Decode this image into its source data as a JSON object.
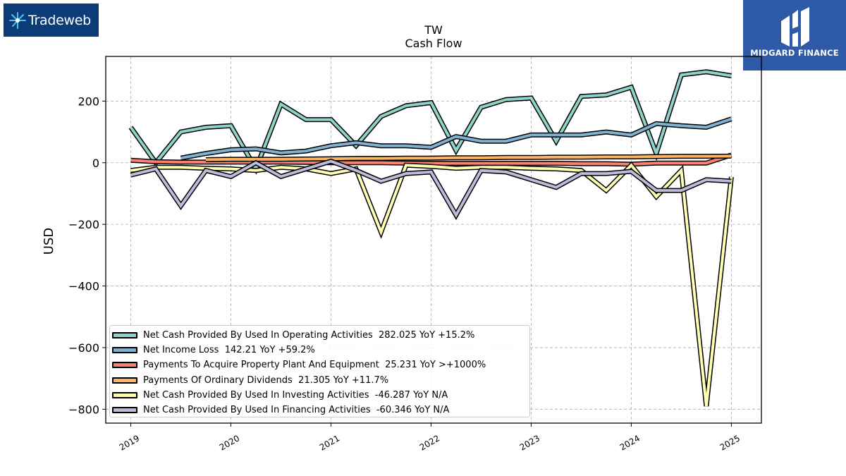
{
  "logos": {
    "left_text": "Tradeweb",
    "right_text": "MIDGARD FINANCE"
  },
  "chart_data": {
    "type": "line",
    "title": "TW",
    "subtitle": "Cash Flow",
    "xlabel": "",
    "ylabel": "USD",
    "xlim": [
      2018.75,
      2025.3
    ],
    "ylim": [
      -845,
      345
    ],
    "grid": true,
    "legend_position": "lower-left",
    "x_ticks": [
      "2019",
      "2020",
      "2021",
      "2022",
      "2023",
      "2024",
      "2025"
    ],
    "y_ticks": [
      {
        "value": 200,
        "label": "200"
      },
      {
        "value": 0,
        "label": "0"
      },
      {
        "value": -200,
        "label": "−200"
      },
      {
        "value": -400,
        "label": "−400"
      },
      {
        "value": -600,
        "label": "−600"
      },
      {
        "value": -800,
        "label": "−800"
      }
    ],
    "series": [
      {
        "name": "Net Cash Provided By Used In Operating Activities",
        "legend": "Net Cash Provided By Used In Operating Activities  282.025 YoY +15.2%",
        "color": "#8dd3c7",
        "x": [
          2019.0,
          2019.25,
          2019.5,
          2019.75,
          2020.0,
          2020.25,
          2020.5,
          2020.75,
          2021.0,
          2021.25,
          2021.5,
          2021.75,
          2022.0,
          2022.25,
          2022.5,
          2022.75,
          2023.0,
          2023.25,
          2023.5,
          2023.75,
          2024.0,
          2024.25,
          2024.5,
          2024.75,
          2025.0
        ],
        "values": [
          115,
          0,
          100,
          115,
          120,
          -20,
          190,
          140,
          140,
          55,
          150,
          185,
          195,
          40,
          180,
          205,
          210,
          70,
          215,
          220,
          245,
          30,
          285,
          295,
          282
        ]
      },
      {
        "name": "Net Income Loss",
        "legend": "Net Income Loss  142.21 YoY +59.2%",
        "color": "#80b1d3",
        "x": [
          2019.5,
          2019.75,
          2020.0,
          2020.25,
          2020.5,
          2020.75,
          2021.0,
          2021.25,
          2021.5,
          2021.75,
          2022.0,
          2022.25,
          2022.5,
          2022.75,
          2023.0,
          2023.25,
          2023.5,
          2023.75,
          2024.0,
          2024.25,
          2024.5,
          2024.75,
          2025.0
        ],
        "values": [
          15,
          30,
          42,
          45,
          32,
          38,
          55,
          65,
          55,
          55,
          50,
          85,
          70,
          70,
          90,
          90,
          90,
          100,
          90,
          127,
          120,
          115,
          142
        ]
      },
      {
        "name": "Payments To Acquire Property Plant And Equipment",
        "legend": "Payments To Acquire Property Plant And Equipment  25.231 YoY >+1000%",
        "color": "#fb8072",
        "x": [
          2019.0,
          2019.25,
          2019.5,
          2019.75,
          2020.0,
          2020.25,
          2020.5,
          2020.75,
          2021.0,
          2021.25,
          2021.5,
          2021.75,
          2022.0,
          2022.25,
          2022.5,
          2022.75,
          2023.0,
          2023.25,
          2023.5,
          2023.75,
          2024.0,
          2024.25,
          2024.5,
          2024.75,
          2025.0
        ],
        "values": [
          8,
          3,
          2,
          2,
          2,
          2,
          2,
          1,
          0,
          0,
          0,
          -1,
          -2,
          -2,
          -2,
          -2,
          -2,
          -2,
          -3,
          -3,
          -5,
          -1,
          -1,
          -1,
          25
        ]
      },
      {
        "name": "Payments Of Ordinary Dividends",
        "legend": "Payments Of Ordinary Dividends  21.305 YoY +11.7%",
        "color": "#fdb462",
        "x": [
          2019.75,
          2020.0,
          2020.25,
          2020.5,
          2020.75,
          2021.0,
          2021.25,
          2021.5,
          2021.75,
          2022.0,
          2022.25,
          2022.5,
          2022.75,
          2023.0,
          2023.25,
          2023.5,
          2023.75,
          2024.0,
          2024.25,
          2024.5,
          2024.75,
          2025.0
        ],
        "values": [
          10,
          11,
          11,
          11,
          12,
          13,
          14,
          14,
          15,
          15,
          16,
          16,
          17,
          17,
          18,
          18,
          19,
          19,
          20,
          21,
          21,
          21.3
        ]
      },
      {
        "name": "Net Cash Provided By Used In Investing Activities",
        "legend": "Net Cash Provided By Used In Investing Activities  -46.287 YoY N/A",
        "color": "#ffffb3",
        "x": [
          2019.0,
          2019.25,
          2019.5,
          2019.75,
          2020.0,
          2020.25,
          2020.5,
          2020.75,
          2021.0,
          2021.25,
          2021.5,
          2021.75,
          2022.0,
          2022.25,
          2022.5,
          2022.75,
          2023.0,
          2023.25,
          2023.5,
          2023.75,
          2024.0,
          2024.25,
          2024.5,
          2024.75,
          2025.0
        ],
        "values": [
          -25,
          -15,
          -15,
          -18,
          -20,
          -25,
          -15,
          -20,
          -35,
          -20,
          -225,
          -8,
          -12,
          -18,
          -15,
          -15,
          -18,
          -20,
          -25,
          -90,
          -8,
          -110,
          -25,
          -790,
          -46
        ]
      },
      {
        "name": "Net Cash Provided By Used In Financing Activities",
        "legend": "Net Cash Provided By Used In Financing Activities  -60.346 YoY N/A",
        "color": "#bebada",
        "x": [
          2019.0,
          2019.25,
          2019.5,
          2019.75,
          2020.0,
          2020.25,
          2020.5,
          2020.75,
          2021.0,
          2021.25,
          2021.5,
          2021.75,
          2022.0,
          2022.25,
          2022.5,
          2022.75,
          2023.0,
          2023.25,
          2023.5,
          2023.75,
          2024.0,
          2024.25,
          2024.5,
          2024.75,
          2025.0
        ],
        "values": [
          -40,
          -20,
          -140,
          -25,
          -45,
          0,
          -45,
          -20,
          5,
          -25,
          -60,
          -35,
          -30,
          -170,
          -25,
          -30,
          -55,
          -80,
          -35,
          -35,
          -28,
          -90,
          -90,
          -55,
          -60
        ]
      }
    ]
  }
}
